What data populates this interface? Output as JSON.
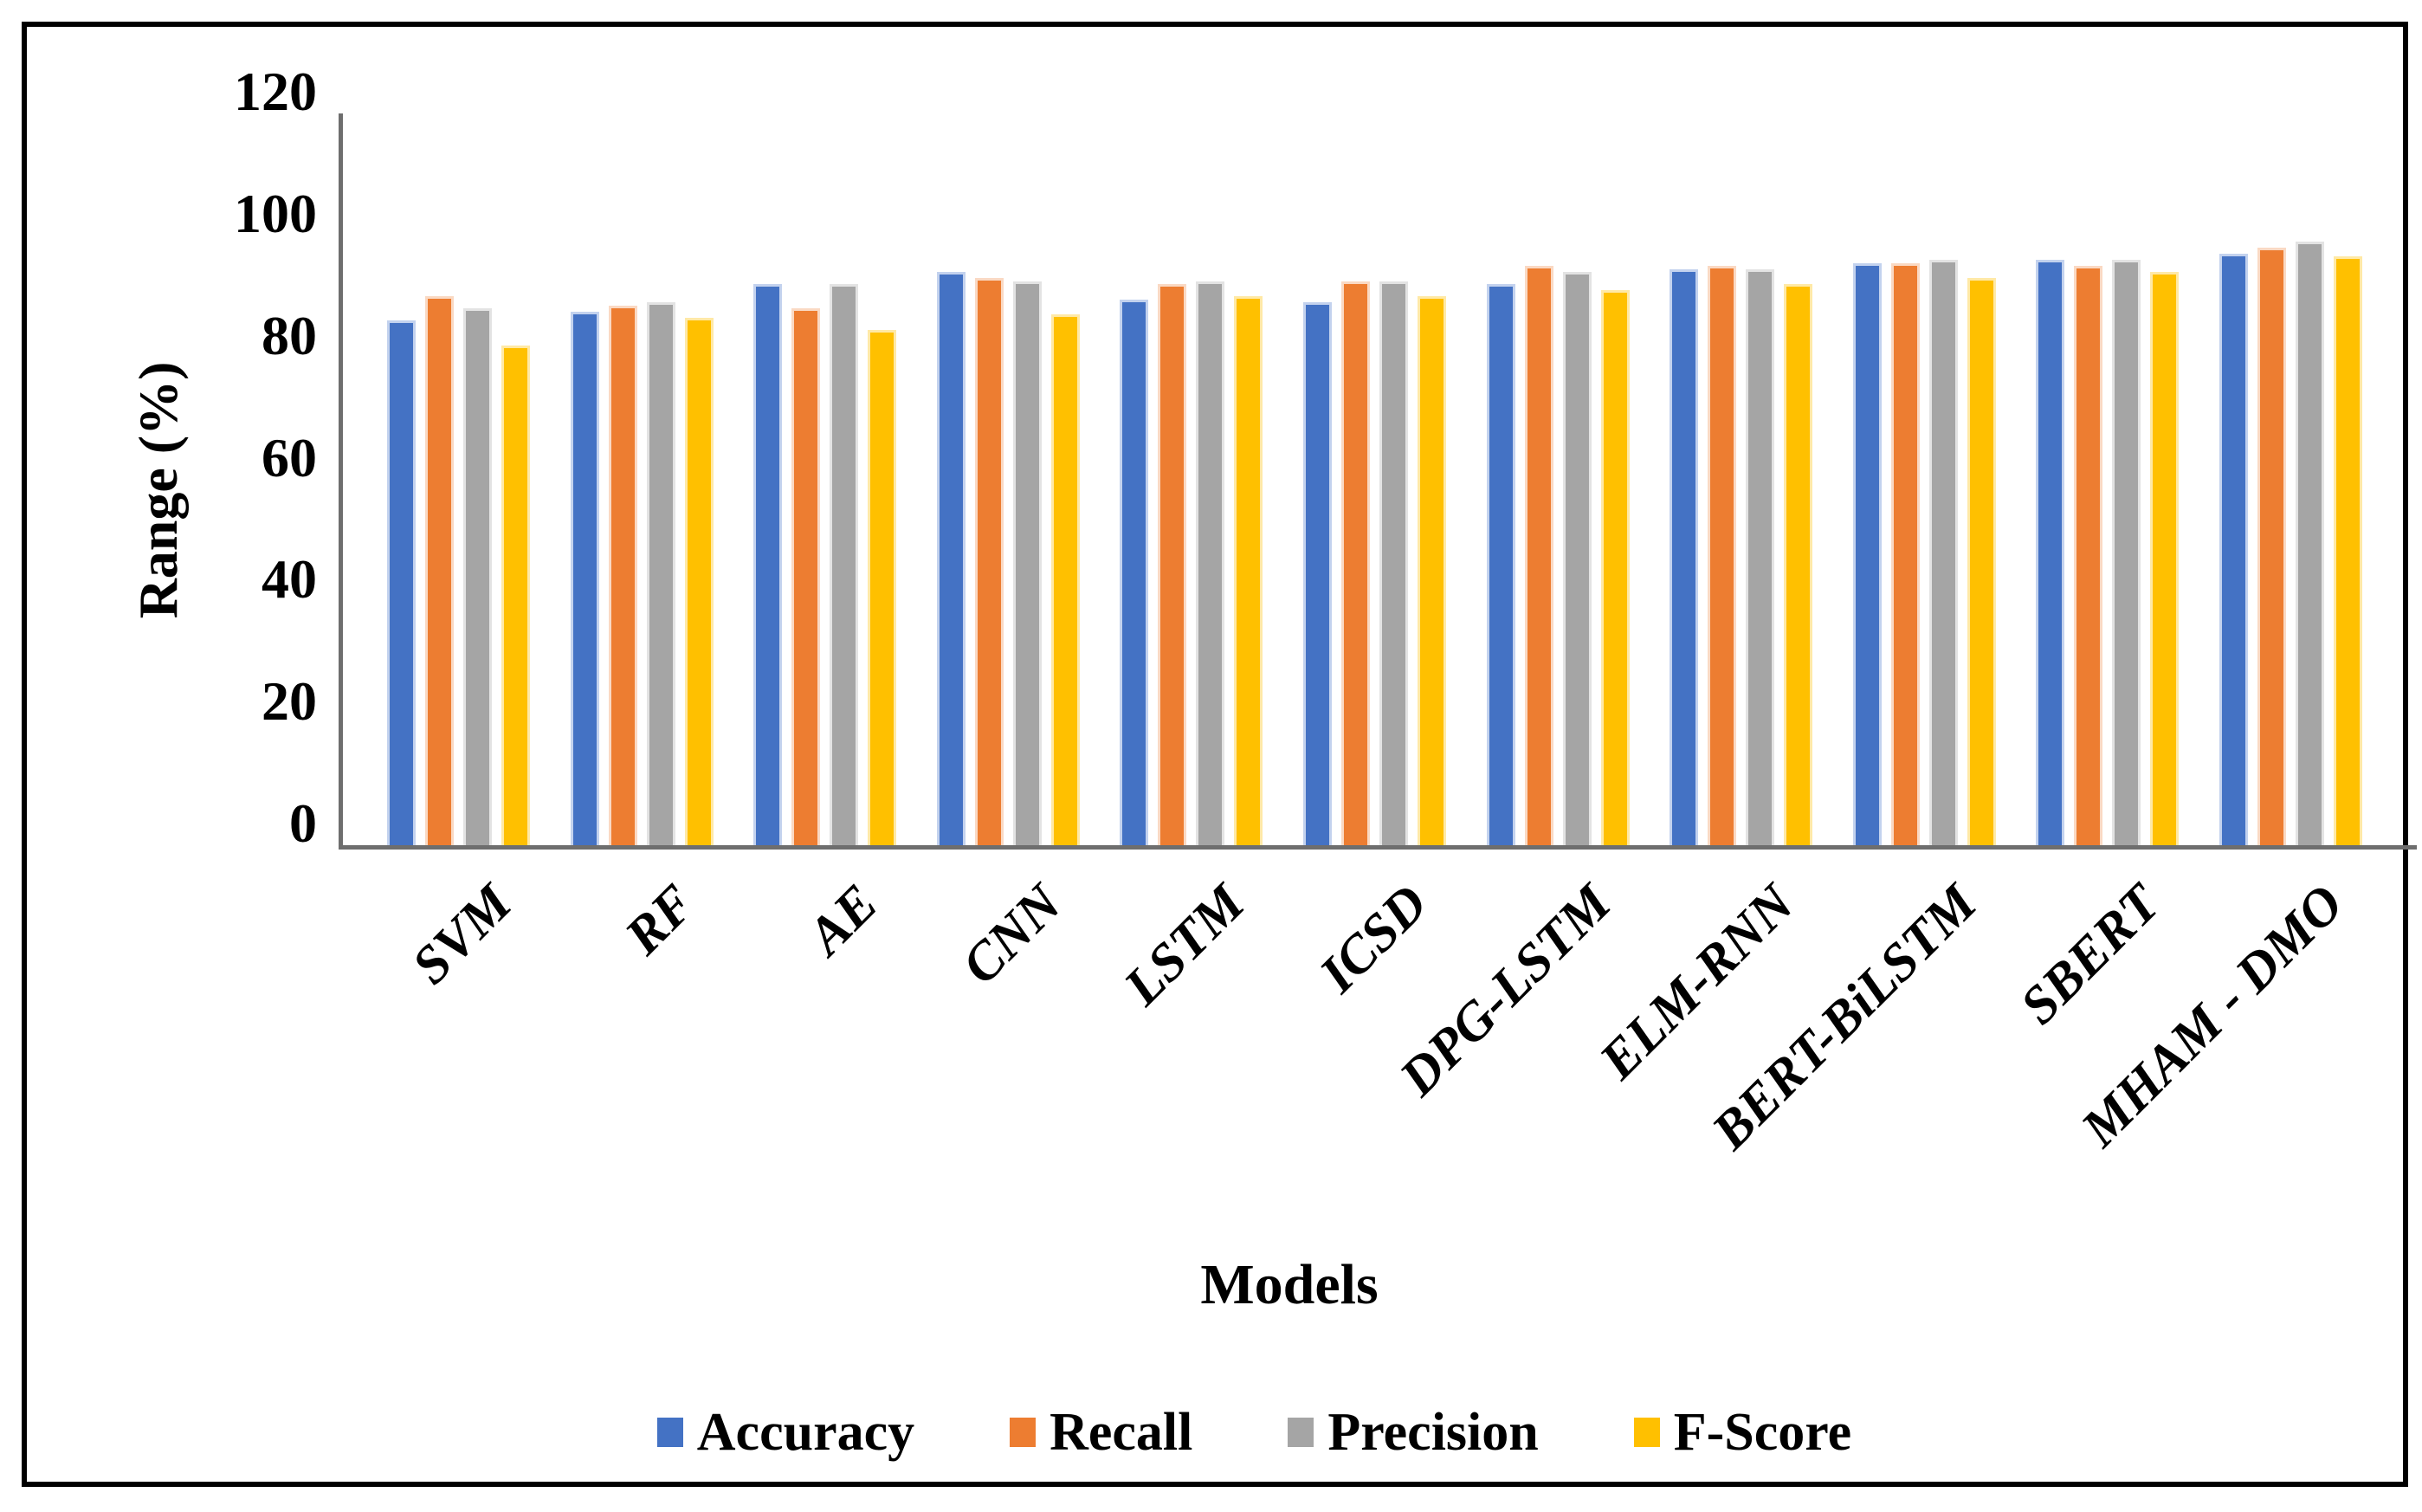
{
  "figure": {
    "background": "#ffffff",
    "border_color": "#000000",
    "axis_line_color": "#6e6e6e"
  },
  "chart_data": {
    "type": "bar",
    "title": "",
    "xlabel": "Models",
    "ylabel": "Range (%)",
    "ylim": [
      0,
      120
    ],
    "y_ticks": [
      0,
      20,
      40,
      60,
      80,
      100,
      120
    ],
    "grid": false,
    "legend_position": "bottom",
    "categories": [
      "SVM",
      "RF",
      "AE",
      "CNN",
      "LSTM",
      "ICSD",
      "DPG-LSTM",
      "ELM-RNN",
      "BERT-BiLSTM",
      "SBERT",
      "MHAM - DMO"
    ],
    "series": [
      {
        "name": "Accuracy",
        "color": "#4472C4",
        "edge_color": "#c3d2ee",
        "values": [
          86,
          87.5,
          92,
          94,
          89.5,
          89,
          92,
          94.5,
          95.5,
          96,
          97
        ]
      },
      {
        "name": "Recall",
        "color": "#ED7D31",
        "edge_color": "#fad9c3",
        "values": [
          90,
          88.5,
          88,
          93,
          92,
          92.5,
          95,
          95,
          95.5,
          95,
          98
        ]
      },
      {
        "name": "Precision",
        "color": "#A5A5A5",
        "edge_color": "#e3e3e3",
        "values": [
          88,
          89,
          92,
          92.5,
          92.5,
          92.5,
          94,
          94.5,
          96,
          96,
          99
        ]
      },
      {
        "name": "F-Score",
        "color": "#FFC000",
        "edge_color": "#ffe9a6",
        "values": [
          82,
          86.5,
          84.5,
          87,
          90,
          90,
          91,
          92,
          93,
          94,
          96.5
        ]
      }
    ]
  }
}
